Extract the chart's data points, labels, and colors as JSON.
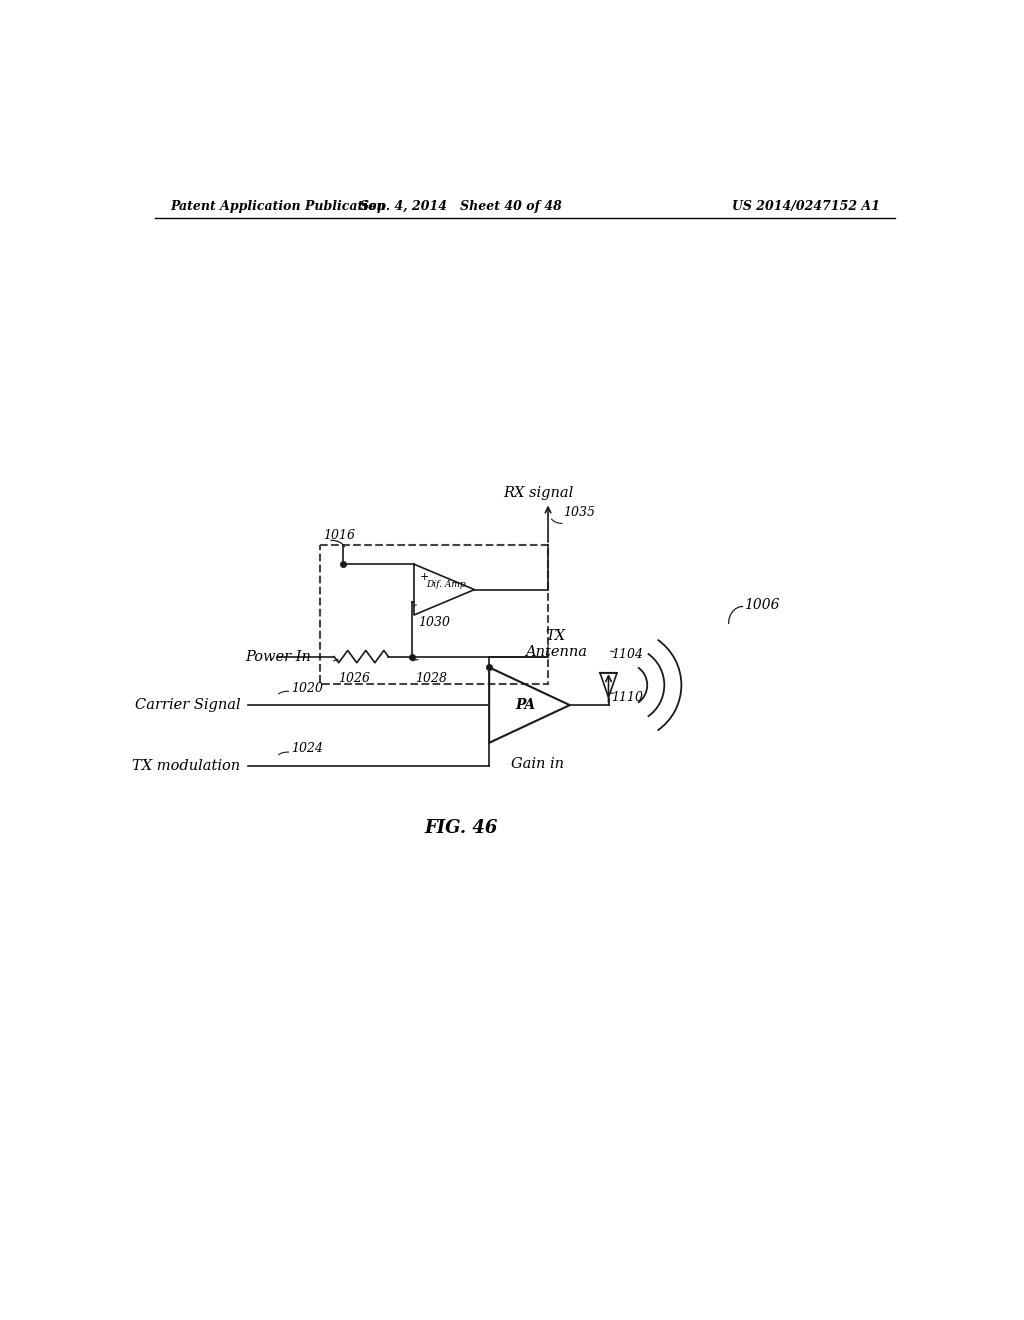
{
  "title_left": "Patent Application Publication",
  "title_mid": "Sep. 4, 2014   Sheet 40 of 48",
  "title_right": "US 2014/0247152 A1",
  "fig_label": "FIG. 46",
  "bg_color": "#ffffff",
  "line_color": "#1a1a1a",
  "labels": {
    "rx_signal": "RX signal",
    "power_in": "Power In",
    "carrier_signal": "Carrier Signal",
    "tx_modulation": "TX modulation",
    "tx_antenna": "TX\nAntenna",
    "dif_amp": "Dif. Amp",
    "pa": "PA",
    "gain_in": "Gain in",
    "n1016": "1016",
    "n1035": "1035",
    "n1026": "1026",
    "n1028": "1028",
    "n1030": "1030",
    "n1020": "1020",
    "n1024": "1024",
    "n1104": "1104",
    "n1110": "1110",
    "n1006": "1006"
  }
}
